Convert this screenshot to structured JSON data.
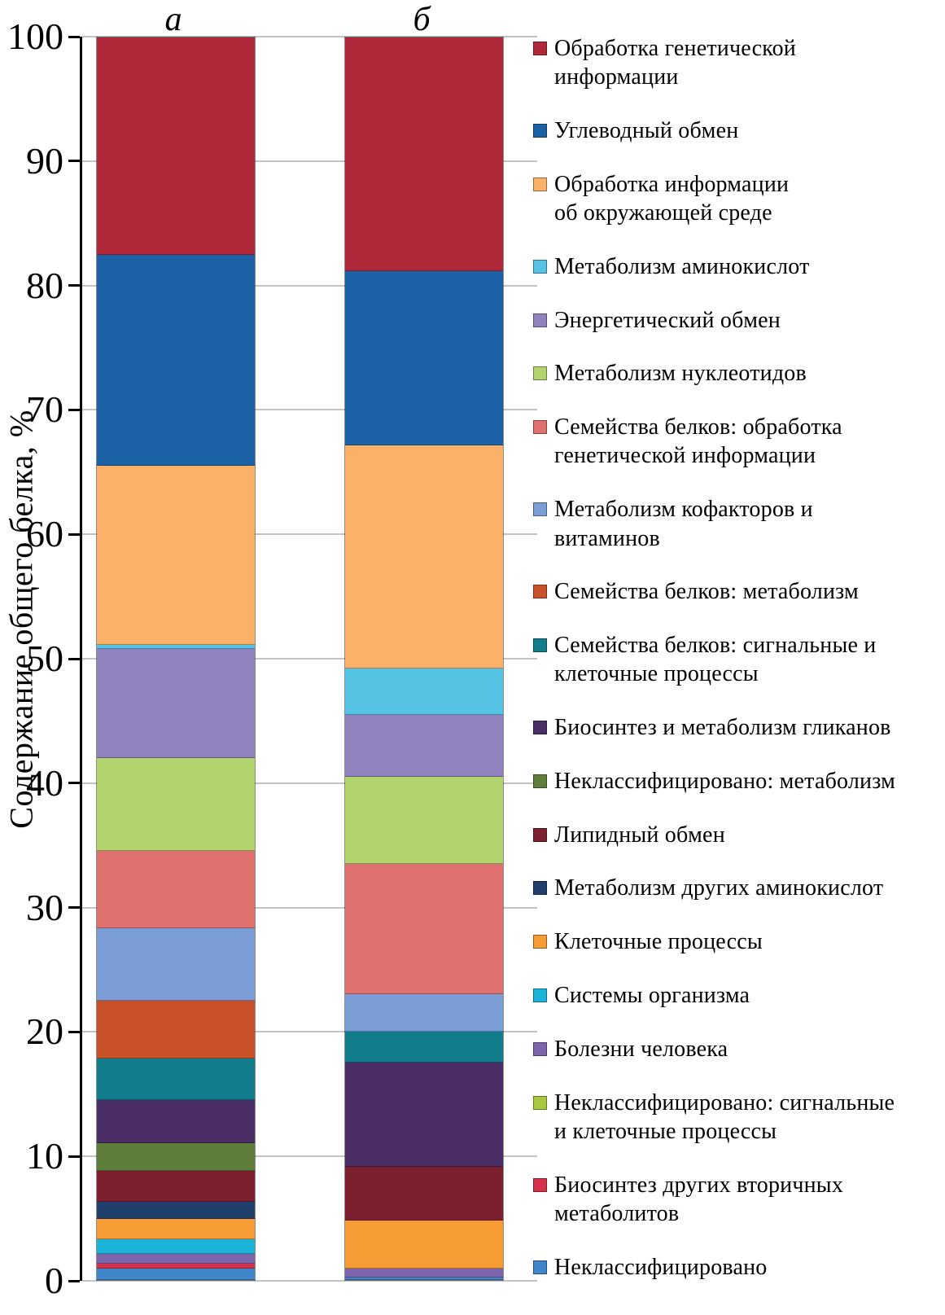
{
  "figure": {
    "column_labels": {
      "a": "а",
      "b": "б"
    }
  },
  "chart_data": {
    "type": "bar",
    "stacked": true,
    "categories": [
      "а",
      "б"
    ],
    "title": "",
    "xlabel": "",
    "ylabel": "Содержание общего белка, %",
    "ylim": [
      0,
      100
    ],
    "y_ticks": [
      0,
      10,
      20,
      30,
      40,
      50,
      60,
      70,
      80,
      90,
      100
    ],
    "grid": true,
    "legend_position": "right",
    "series": [
      {
        "name": "Обработка генетической информации",
        "label": "Обработка генетической\nинформации",
        "color": "#b0293a",
        "values": [
          17.5,
          18.8
        ]
      },
      {
        "name": "Углеводный обмен",
        "label": "Углеводный обмен",
        "color": "#1b61a5",
        "values": [
          17.0,
          14.0
        ]
      },
      {
        "name": "Обработка информации об окружающей среде",
        "label": "Обработка информации\nоб окружающей среде",
        "color": "#fbb168",
        "values": [
          14.4,
          18.0
        ]
      },
      {
        "name": "Метаболизм аминокислот",
        "label": "Метаболизм аминокислот",
        "color": "#55c3e3",
        "values": [
          0.3,
          3.7
        ]
      },
      {
        "name": "Энергетический обмен",
        "label": "Энергетический обмен",
        "color": "#9182be",
        "values": [
          8.8,
          5.0
        ]
      },
      {
        "name": "Метаболизм нуклеотидов",
        "label": "Метаболизм нуклеотидов",
        "color": "#b2d46e",
        "values": [
          7.5,
          7.0
        ]
      },
      {
        "name": "Семейства белков: обработка генетической информации",
        "label": "Семейства белков: обработка\nгенетической информации",
        "color": "#e0716e",
        "values": [
          6.2,
          10.5
        ]
      },
      {
        "name": "Метаболизм кофакторов и витаминов",
        "label": "Метаболизм кофакторов и\nвитаминов",
        "color": "#7b9ed6",
        "values": [
          5.8,
          3.0
        ]
      },
      {
        "name": "Семейства белков: метаболизм",
        "label": "Семейства белков: метаболизм",
        "color": "#c9522b",
        "values": [
          4.7,
          0
        ]
      },
      {
        "name": "Семейства белков: сигнальные и клеточные процессы",
        "label": "Семейства белков: сигнальные и\nклеточные процессы",
        "color": "#117c8a",
        "values": [
          3.3,
          2.5
        ]
      },
      {
        "name": "Биосинтез и метаболизм гликанов",
        "label": "Биосинтез и метаболизм гликанов",
        "color": "#4a2d64",
        "values": [
          3.5,
          8.4
        ]
      },
      {
        "name": "Неклассифицировано: метаболизм",
        "label": "Неклассифицировано: метаболизм",
        "color": "#5f7e3b",
        "values": [
          2.2,
          0
        ]
      },
      {
        "name": "Липидный обмен",
        "label": "Липидный обмен",
        "color": "#7c1f2e",
        "values": [
          2.5,
          4.3
        ]
      },
      {
        "name": "Метаболизм других аминокислот",
        "label": "Метаболизм других аминокислот",
        "color": "#20406b",
        "values": [
          1.4,
          0
        ]
      },
      {
        "name": "Клеточные процессы",
        "label": "Клеточные процессы",
        "color": "#f79c34",
        "values": [
          1.6,
          3.9
        ]
      },
      {
        "name": "Системы организма",
        "label": "Системы организма",
        "color": "#1ab4d8",
        "values": [
          1.2,
          0
        ]
      },
      {
        "name": "Болезни человека",
        "label": "Болезни человека",
        "color": "#7e64ab",
        "values": [
          0.8,
          0.7
        ]
      },
      {
        "name": "Неклассифицировано: сигнальные и клеточные процессы",
        "label": "Неклассифицировано: сигнальные\nи клеточные процессы",
        "color": "#a9c83e",
        "values": [
          0,
          0
        ]
      },
      {
        "name": "Биосинтез других вторичных метаболитов",
        "label": "Биосинтез других вторичных\nметаболитов",
        "color": "#d6324b",
        "values": [
          0.4,
          0
        ]
      },
      {
        "name": "Неклассифицировано",
        "label": "Неклассифицировано",
        "color": "#3e87c9",
        "values": [
          0.9,
          0.2
        ]
      }
    ]
  }
}
